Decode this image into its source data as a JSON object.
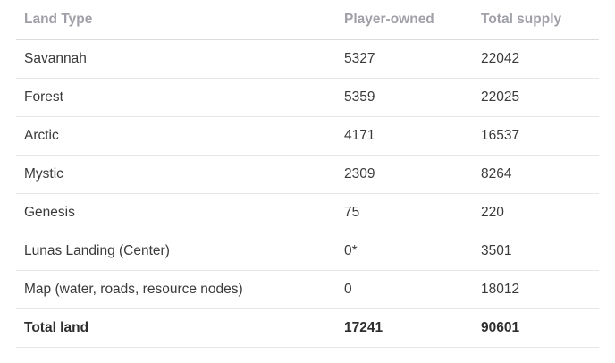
{
  "table": {
    "headers": [
      "Land Type",
      "Player-owned",
      "Total supply"
    ],
    "rows": [
      [
        "Savannah",
        "5327",
        "22042"
      ],
      [
        "Forest",
        "5359",
        "22025"
      ],
      [
        "Arctic",
        "4171",
        "16537"
      ],
      [
        "Mystic",
        "2309",
        "8264"
      ],
      [
        "Genesis",
        "75",
        "220"
      ],
      [
        "Lunas Landing (Center)",
        "0*",
        "3501"
      ],
      [
        "Map (water, roads, resource nodes)",
        "0",
        "18012"
      ]
    ],
    "total": [
      "Total land",
      "17241",
      "90601"
    ]
  }
}
